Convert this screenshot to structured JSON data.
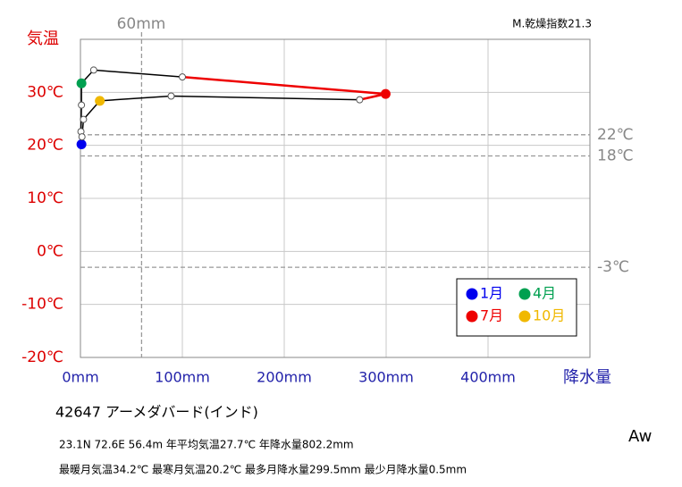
{
  "chart_data": {
    "type": "climograph",
    "y_label": "気温",
    "x_label": "降水量",
    "index_label": "M.乾燥指数21.3",
    "station": "42647  アーメダバード(インド)",
    "info_line1": "23.1N  72.6E  56.4m  年平均気温27.7℃ 年降水量802.2mm",
    "info_line2": "最暖月気温34.2℃ 最寒月気温20.2℃ 最多月降水量299.5mm 最少月降水量0.5mm",
    "climate_class": "Aw",
    "xlim": [
      0,
      500
    ],
    "ylim": [
      -20,
      40
    ],
    "xticks": [
      {
        "value": 0,
        "label": "0mm"
      },
      {
        "value": 100,
        "label": "100mm"
      },
      {
        "value": 200,
        "label": "200mm"
      },
      {
        "value": 300,
        "label": "300mm"
      },
      {
        "value": 400,
        "label": "400mm"
      }
    ],
    "yticks": [
      {
        "value": -20,
        "label": "-20℃"
      },
      {
        "value": -10,
        "label": "-10℃"
      },
      {
        "value": 0,
        "label": "0℃"
      },
      {
        "value": 10,
        "label": "10℃"
      },
      {
        "value": 20,
        "label": "20℃"
      },
      {
        "value": 30,
        "label": "30℃"
      }
    ],
    "grid": true,
    "y_reference_lines": [
      {
        "value": 22,
        "label": "22℃"
      },
      {
        "value": 18,
        "label": "18℃"
      },
      {
        "value": -3,
        "label": "-3℃"
      }
    ],
    "x_reference_lines": [
      {
        "value": 60,
        "label": "60mm"
      }
    ],
    "precipitation": [
      1,
      0.5,
      1,
      1,
      13,
      100,
      299.5,
      274,
      89,
      19,
      3,
      1.5
    ],
    "temperature": [
      20.2,
      22.6,
      27.6,
      31.7,
      34.2,
      32.9,
      29.7,
      28.6,
      29.3,
      28.4,
      24.9,
      21.6
    ],
    "marker_colors": [
      "#0000ee",
      "white",
      "white",
      "#00a050",
      "white",
      "white",
      "#ee0000",
      "white",
      "white",
      "#f0b800",
      "white",
      "white"
    ],
    "segment_colors": [
      "black",
      "black",
      "black",
      "black",
      "black",
      "#ee0000",
      "#ee0000",
      "black",
      "black",
      "black",
      "black",
      "black"
    ],
    "legend": [
      {
        "name": "1月",
        "color": "#0000ee"
      },
      {
        "name": "4月",
        "color": "#00a050"
      },
      {
        "name": "7月",
        "color": "#ee0000"
      },
      {
        "name": "10月",
        "color": "#f0b800"
      }
    ]
  }
}
